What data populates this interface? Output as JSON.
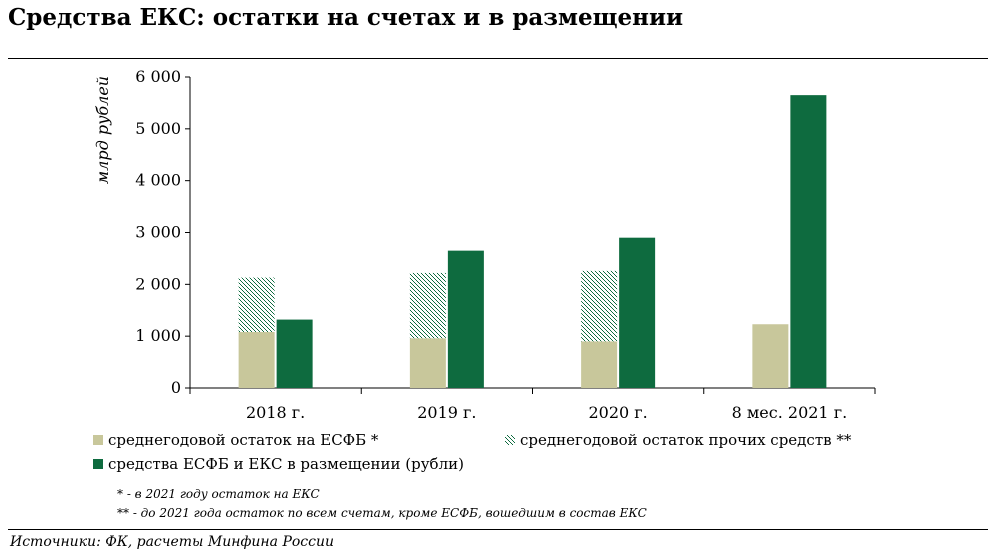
{
  "title": "Средства ЕКС: остатки на счетах и в размещении",
  "notes": [
    "* - в 2021 году остаток на ЕКС",
    "** - до 2021 года остаток по всем счетам, кроме ЕСФБ, вошедшим в состав ЕКС"
  ],
  "source": "Источники: ФК, расчеты Минфина России",
  "colors": {
    "esfb_avg": "#c8c79b",
    "other_avg": "#0e6b3f",
    "placement": "#0e6b3f"
  },
  "chart_data": {
    "type": "bar",
    "stacked_group": "series 1 and 2 stacked, series 3 side-by-side",
    "categories": [
      "2018 г.",
      "2019 г.",
      "2020 г.",
      "8 мес. 2021 г."
    ],
    "ylabel": "млрд рублей",
    "ylim": [
      0,
      6000
    ],
    "yticks": [
      0,
      1000,
      2000,
      3000,
      4000,
      5000,
      6000
    ],
    "ytick_labels": [
      "0",
      "1 000",
      "2 000",
      "3 000",
      "4 000",
      "5 000",
      "6 000"
    ],
    "grid": false,
    "legend_position": "bottom",
    "series": [
      {
        "name": "среднегодовой остаток на ЕСФБ *",
        "pattern": "solid",
        "values": [
          1080,
          960,
          900,
          1230
        ]
      },
      {
        "name": "среднегодовой остаток прочих средств **",
        "pattern": "hatched",
        "values": [
          1050,
          1260,
          1360,
          0
        ]
      },
      {
        "name": "средства ЕСФБ и ЕКС в размещении (рубли)",
        "pattern": "solid",
        "values": [
          1320,
          2650,
          2900,
          5650
        ]
      }
    ]
  }
}
